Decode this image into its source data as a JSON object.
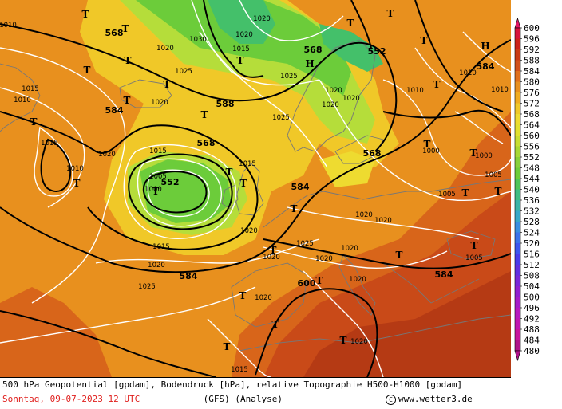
{
  "map": {
    "colors": {
      "sea_orange": "#e8901e",
      "dark_orange": "#d8651a",
      "red_orange": "#c94a18",
      "deep_red": "#b53a14",
      "yellow": "#f0d030",
      "light_green": "#b5dd3a",
      "green": "#6ccc3a",
      "teal_green": "#44c06a",
      "contour_white": "#ffffff",
      "contour_black": "#000000",
      "coast_grey": "#777777"
    },
    "geopotential_labels": [
      "568",
      "552",
      "568",
      "588",
      "584",
      "568",
      "552",
      "584",
      "568",
      "584",
      "584",
      "600",
      "584"
    ],
    "pressure_labels": [
      "1010",
      "1015",
      "1020",
      "1025",
      "1030",
      "1005",
      "1000",
      "1015",
      "1020",
      "1020",
      "1025",
      "1020",
      "1020",
      "1015",
      "1020",
      "1025",
      "1015",
      "1020",
      "1010",
      "1015",
      "1020",
      "1025",
      "1020",
      "1015",
      "1020",
      "1005",
      "1010",
      "1020",
      "1020",
      "1020",
      "1025",
      "1020",
      "1020",
      "1020",
      "1015",
      "1020",
      "1005",
      "1000",
      "1020",
      "1010",
      "1010",
      "1000",
      "1005",
      "1010"
    ],
    "markers": {
      "high": "H",
      "low": "T"
    }
  },
  "legend": {
    "values": [
      600,
      596,
      592,
      588,
      584,
      580,
      576,
      572,
      568,
      564,
      560,
      556,
      552,
      548,
      544,
      540,
      536,
      532,
      528,
      524,
      520,
      516,
      512,
      508,
      504,
      500,
      496,
      492,
      488,
      484,
      480
    ],
    "colors": [
      "#e21565",
      "#d8143c",
      "#cc2218",
      "#c93a14",
      "#d1501a",
      "#e0701c",
      "#e8901e",
      "#f0ac20",
      "#f0c828",
      "#eedb30",
      "#e2e030",
      "#c8de34",
      "#a8d836",
      "#88d03a",
      "#6ccc3a",
      "#4ec45a",
      "#40bc82",
      "#3cb4a8",
      "#38a8c8",
      "#3a8ee0",
      "#3c72ea",
      "#3e56ee",
      "#4a3cea",
      "#6230e0",
      "#7a28d8",
      "#9220d0",
      "#a61cc8",
      "#b818be",
      "#c016b0",
      "#c8149c",
      "#b0128a"
    ]
  },
  "footer": {
    "line1": "500 hPa Geopotential [gpdam], Bodendruck [hPa], relative Topographie H500-H1000 [gpdam]",
    "date": "Sonntag, 09-07-2023  12 UTC",
    "run": "(GFS)  (Analyse)",
    "copyright_symbol": "C",
    "copyright": "www.wetter3.de"
  }
}
